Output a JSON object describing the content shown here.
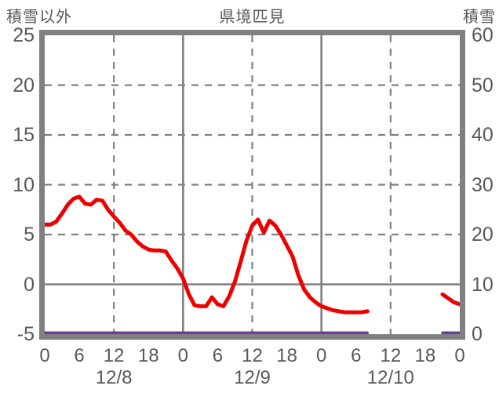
{
  "chart_data": {
    "type": "line",
    "title": "県境匹見",
    "left_axis_label": "積雪以外",
    "right_axis_label": "積雪",
    "left_ylim": [
      -5,
      25
    ],
    "right_ylim": [
      0,
      60
    ],
    "x_hours_span": 72,
    "left_ticks": [
      {
        "value": 25,
        "label": "25"
      },
      {
        "value": 20,
        "label": "20"
      },
      {
        "value": 15,
        "label": "15"
      },
      {
        "value": 10,
        "label": "10"
      },
      {
        "value": 5,
        "label": "5"
      },
      {
        "value": 0,
        "label": "0"
      },
      {
        "value": -5,
        "label": "-5"
      }
    ],
    "right_ticks": [
      {
        "value": 60,
        "label": "60"
      },
      {
        "value": 50,
        "label": "50"
      },
      {
        "value": 40,
        "label": "40"
      },
      {
        "value": 30,
        "label": "30"
      },
      {
        "value": 20,
        "label": "20"
      },
      {
        "value": 10,
        "label": "10"
      },
      {
        "value": 0,
        "label": "0"
      }
    ],
    "x_ticks": [
      {
        "hour": 0,
        "label": "0"
      },
      {
        "hour": 6,
        "label": "6"
      },
      {
        "hour": 12,
        "label": "12"
      },
      {
        "hour": 18,
        "label": "18"
      },
      {
        "hour": 24,
        "label": "0"
      },
      {
        "hour": 30,
        "label": "6"
      },
      {
        "hour": 36,
        "label": "12"
      },
      {
        "hour": 42,
        "label": "18"
      },
      {
        "hour": 48,
        "label": "0"
      },
      {
        "hour": 54,
        "label": "6"
      },
      {
        "hour": 60,
        "label": "12"
      },
      {
        "hour": 66,
        "label": "18"
      },
      {
        "hour": 72,
        "label": "0"
      }
    ],
    "date_labels": [
      {
        "hour": 12,
        "label": "12/8"
      },
      {
        "hour": 36,
        "label": "12/9"
      },
      {
        "hour": 60,
        "label": "12/10"
      }
    ],
    "grid": {
      "h_dashed_values_left": [
        20,
        15,
        10,
        5
      ],
      "h_solid_values_left": [
        0
      ],
      "v_dashed_hours": [
        12,
        36,
        60
      ],
      "v_solid_hours": [
        24,
        48
      ],
      "grid_color": "#808080"
    },
    "colors": {
      "frame": "#808080",
      "text": "#595959",
      "series_main": "#ee0000",
      "series_snow": "#6a3d9a"
    },
    "series": [
      {
        "name": "積雪以外",
        "axis": "left",
        "color": "#ee0000",
        "stroke_width": 5,
        "values": [
          6.0,
          6.0,
          6.3,
          7.1,
          8.0,
          8.6,
          8.8,
          8.1,
          8.0,
          8.5,
          8.4,
          7.5,
          6.8,
          6.2,
          5.4,
          5.0,
          4.3,
          3.8,
          3.5,
          3.4,
          3.4,
          3.3,
          2.4,
          1.6,
          0.6,
          -1.0,
          -2.1,
          -2.2,
          -2.2,
          -1.3,
          -2.0,
          -2.2,
          -1.2,
          0.3,
          2.3,
          4.4,
          5.9,
          6.5,
          5.2,
          6.4,
          5.9,
          5.0,
          3.9,
          2.8,
          0.9,
          -0.5,
          -1.3,
          -1.8,
          -2.2,
          -2.4,
          -2.6,
          -2.7,
          -2.8,
          -2.8,
          -2.8,
          -2.8,
          -2.7,
          null,
          null,
          null,
          null,
          null,
          null,
          null,
          null,
          null,
          null,
          null,
          null,
          -1.0,
          -1.4,
          -1.8,
          -2.0
        ]
      },
      {
        "name": "積雪",
        "axis": "right",
        "color": "#6a3d9a",
        "stroke_width": 3.5,
        "values": [
          0,
          0,
          0,
          0,
          0,
          0,
          0,
          0,
          0,
          0,
          0,
          0,
          0,
          0,
          0,
          0,
          0,
          0,
          0,
          0,
          0,
          0,
          0,
          0,
          0,
          0,
          0,
          0,
          0,
          0,
          0,
          0,
          0,
          0,
          0,
          0,
          0,
          0,
          0,
          0,
          0,
          0,
          0,
          0,
          0,
          0,
          0,
          0,
          0,
          0,
          0,
          0,
          0,
          0,
          0,
          0,
          0,
          null,
          null,
          null,
          null,
          null,
          null,
          null,
          null,
          null,
          null,
          null,
          null,
          0,
          0,
          0,
          0
        ]
      }
    ]
  }
}
